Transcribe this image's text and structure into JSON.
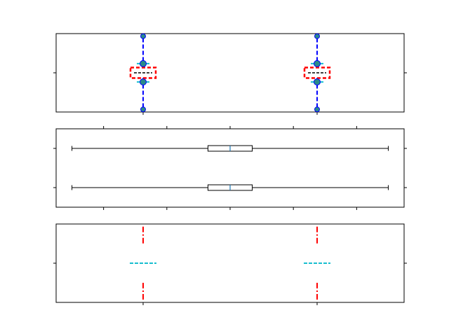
{
  "chart_data": [
    {
      "type": "boxplot",
      "orientation": "vertical",
      "style": "custom dashed boxes (red dashed box, blue dashed whiskers, cyan caps, blue circle fliers)",
      "positions": [
        1,
        2
      ],
      "xlim": [
        0.5,
        2.5
      ],
      "ylim": [
        -3,
        3
      ],
      "boxes": [
        {
          "position": 1,
          "q1": -0.4,
          "median": 0,
          "q3": 0.4,
          "whisker_low": -0.7,
          "whisker_high": 0.7,
          "fliers": [
            -2.8,
            2.8
          ]
        },
        {
          "position": 2,
          "q1": -0.4,
          "median": 0,
          "q3": 0.4,
          "whisker_low": -0.7,
          "whisker_high": 0.7,
          "fliers": [
            -2.8,
            2.8
          ]
        }
      ],
      "colors": {
        "box": "#ff0000",
        "median": "#000000",
        "whisker": "#0000ff",
        "cap": "#17becf",
        "flier_face": "#2a8a8a",
        "flier_edge": "#0000ff"
      },
      "tick_labels_shown": false
    },
    {
      "type": "boxplot",
      "orientation": "horizontal",
      "positions": [
        1,
        2
      ],
      "xlim": [
        -5.5,
        5.5
      ],
      "ylim": [
        0.5,
        2.5
      ],
      "boxes": [
        {
          "position": 1,
          "q1": -0.7,
          "median": 0,
          "q3": 0.7,
          "whisker_low": -5,
          "whisker_high": 5
        },
        {
          "position": 2,
          "q1": -0.7,
          "median": 0,
          "q3": 0.7,
          "whisker_low": -5,
          "whisker_high": 5
        }
      ],
      "colors": {
        "box": "#000000",
        "median": "#1f77b4",
        "whisker": "#000000",
        "cap": "#000000"
      },
      "tick_labels_shown": false
    },
    {
      "type": "boxplot",
      "orientation": "vertical",
      "style": "box hidden; red dash-dot whiskers; cyan dashed median",
      "positions": [
        1,
        2
      ],
      "xlim": [
        0.5,
        2.5
      ],
      "ylim": [
        -3,
        3
      ],
      "boxes": [
        {
          "position": 1,
          "q1": -1.5,
          "median": 0,
          "q3": 1.5,
          "whisker_low": -2.8,
          "whisker_high": 2.8
        },
        {
          "position": 2,
          "q1": -1.5,
          "median": 0,
          "q3": 1.5,
          "whisker_low": -2.8,
          "whisker_high": 2.8
        }
      ],
      "colors": {
        "whisker": "#ff0000",
        "median": "#17becf"
      },
      "tick_labels_shown": false
    }
  ]
}
